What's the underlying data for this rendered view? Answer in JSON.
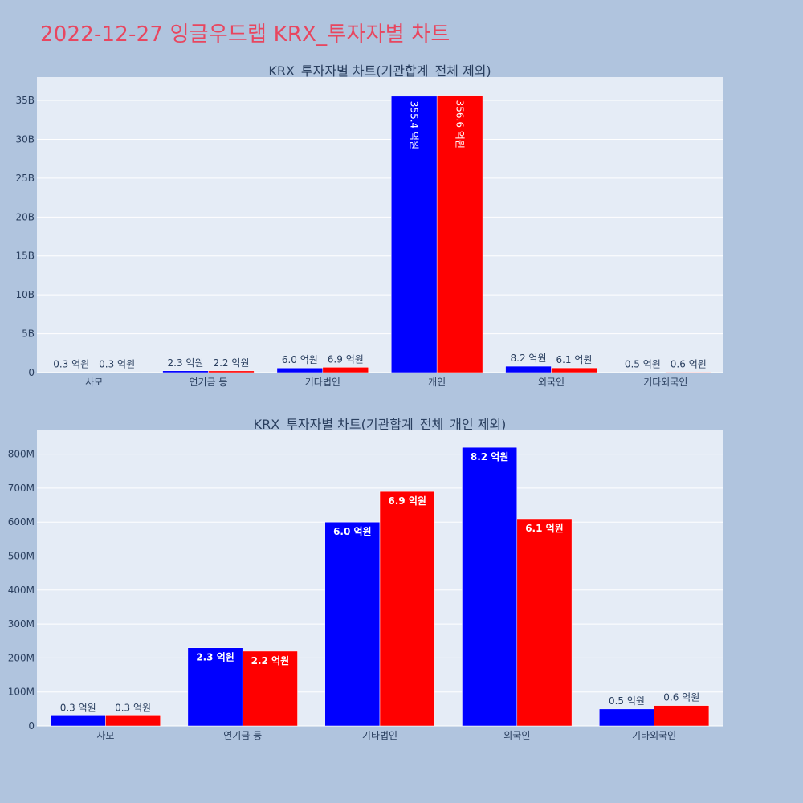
{
  "page": {
    "title": "2022-12-27 잉글우드랩 KRX_투자자별 차트"
  },
  "colors": {
    "series_a": "#0000ff",
    "series_b": "#ff0000",
    "plot_bg": "#e5ecf6",
    "page_bg": "#b0c4de",
    "title": "#e8465f"
  },
  "chart_data": [
    {
      "type": "bar",
      "title": "KRX_투자자별 차트(기관합계_전체 제외)",
      "categories": [
        "사모",
        "연기금 등",
        "기타법인",
        "개인",
        "외국인",
        "기타외국인"
      ],
      "series": [
        {
          "values": [
            30000000,
            230000000,
            600000000,
            35540000000,
            820000000,
            50000000
          ],
          "labels": [
            "0.3 억원",
            "2.3 억원",
            "6.0 억원",
            "355.4 억원",
            "8.2 억원",
            "0.5 억원"
          ]
        },
        {
          "values": [
            30000000,
            220000000,
            690000000,
            35660000000,
            610000000,
            60000000
          ],
          "labels": [
            "0.3 억원",
            "2.2 억원",
            "6.9 억원",
            "356.6 억원",
            "6.1 억원",
            "0.6 억원"
          ]
        }
      ],
      "ylim": [
        0,
        38000000000
      ],
      "yticks": [
        0,
        5000000000,
        10000000000,
        15000000000,
        20000000000,
        25000000000,
        30000000000,
        35000000000
      ],
      "ytick_labels": [
        "0",
        "5B",
        "10B",
        "15B",
        "20B",
        "25B",
        "30B",
        "35B"
      ],
      "grid": true,
      "legend": "none"
    },
    {
      "type": "bar",
      "title": "KRX_투자자별 차트(기관합계_전체_개인 제외)",
      "categories": [
        "사모",
        "연기금 등",
        "기타법인",
        "외국인",
        "기타외국인"
      ],
      "series": [
        {
          "values": [
            30000000,
            230000000,
            600000000,
            820000000,
            50000000
          ],
          "labels": [
            "0.3 억원",
            "2.3 억원",
            "6.0 억원",
            "8.2 억원",
            "0.5 억원"
          ]
        },
        {
          "values": [
            30000000,
            220000000,
            690000000,
            610000000,
            60000000
          ],
          "labels": [
            "0.3 억원",
            "2.2 억원",
            "6.9 억원",
            "6.1 억원",
            "0.6 억원"
          ]
        }
      ],
      "ylim": [
        0,
        870000000
      ],
      "yticks": [
        0,
        100000000,
        200000000,
        300000000,
        400000000,
        500000000,
        600000000,
        700000000,
        800000000
      ],
      "ytick_labels": [
        "0",
        "100M",
        "200M",
        "300M",
        "400M",
        "500M",
        "600M",
        "700M",
        "800M"
      ],
      "grid": true,
      "legend": "none"
    }
  ]
}
